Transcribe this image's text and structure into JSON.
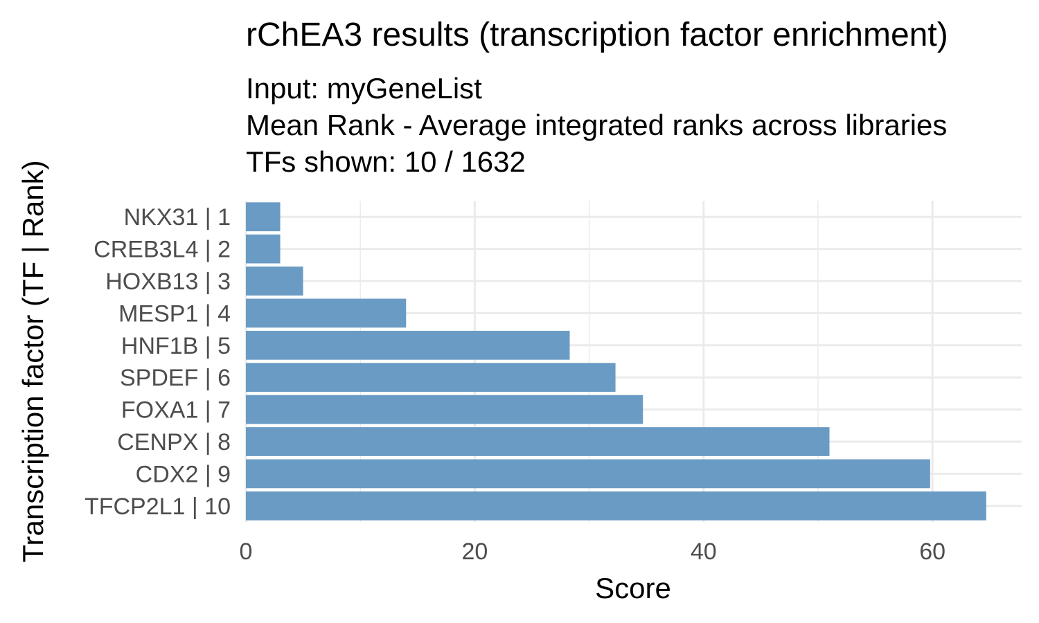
{
  "chart_data": {
    "type": "bar",
    "orientation": "horizontal",
    "title": "rChEA3 results (transcription factor enrichment)",
    "subtitle_lines": [
      "Input: myGeneList",
      "Mean Rank - Average integrated ranks across libraries",
      "TFs shown: 10 / 1632"
    ],
    "xlabel": "Score",
    "ylabel": "Transcription factor (TF | Rank)",
    "categories": [
      "NKX31 | 1",
      "CREB3L4 | 2",
      "HOXB13 | 3",
      "MESP1 | 4",
      "HNF1B | 5",
      "SPDEF | 6",
      "FOXA1 | 7",
      "CENPX | 8",
      "CDX2 | 9",
      "TFCP2L1 | 10"
    ],
    "values": [
      3,
      3,
      5,
      14,
      28.3,
      32.3,
      34.7,
      51,
      59.8,
      64.7
    ],
    "xlim": [
      0,
      67.8
    ],
    "xticks": [
      0,
      20,
      40,
      60
    ],
    "grid": true,
    "bar_color": "#6a9bc5"
  }
}
